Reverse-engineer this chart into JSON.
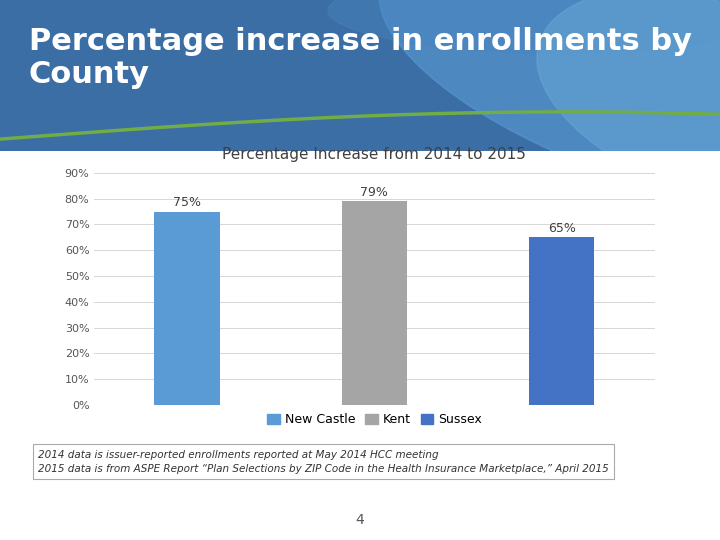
{
  "title": "Percentage Increase from 2014 to 2015",
  "categories": [
    "New Castle",
    "Kent",
    "Sussex"
  ],
  "values": [
    75,
    79,
    65
  ],
  "bar_colors": [
    "#5b9bd5",
    "#a5a5a5",
    "#4472c4"
  ],
  "ylim": [
    0,
    90
  ],
  "yticks": [
    0,
    10,
    20,
    30,
    40,
    50,
    60,
    70,
    80,
    90
  ],
  "ytick_labels": [
    "0%",
    "10%",
    "20%",
    "30%",
    "40%",
    "50%",
    "60%",
    "70%",
    "80%",
    "90%"
  ],
  "bar_labels": [
    "75%",
    "79%",
    "65%"
  ],
  "legend_labels": [
    "New Castle",
    "Kent",
    "Sussex"
  ],
  "legend_colors": [
    "#5b9bd5",
    "#a5a5a5",
    "#4472c4"
  ],
  "footnote_line1": "2014 data is issuer-reported enrollments reported at May 2014 HCC meeting",
  "footnote_line2": "2015 data is from ASPE Report “Plan Selections by ZIP Code in the Health Insurance Marketplace,” April 2015",
  "slide_title_line1": "Percentage increase in enrollments by",
  "slide_title_line2": "County",
  "page_number": "4",
  "header_color_left": "#3a6ea5",
  "header_color_right": "#5b9bd5",
  "title_fontsize": 11,
  "bar_label_fontsize": 9,
  "ytick_fontsize": 8,
  "legend_fontsize": 9,
  "footnote_fontsize": 7.5,
  "slide_title_fontsize": 22,
  "bar_width": 0.35
}
